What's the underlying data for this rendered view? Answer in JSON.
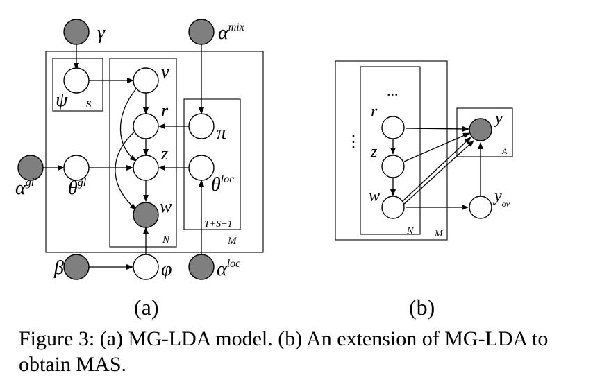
{
  "panel_a": {
    "label": "(a)",
    "nodes": {
      "gamma": "γ",
      "alpha_mix": "α",
      "alpha_mix_sup": "mix",
      "psi": "ψ",
      "v": "v",
      "r": "r",
      "pi": "π",
      "alpha_gl": "α",
      "alpha_gl_sup": "gl",
      "theta_gl": "θ",
      "theta_gl_sup": "gl",
      "z": "z",
      "theta_loc": "θ",
      "theta_loc_sup": "loc",
      "w": "w",
      "beta": "β",
      "phi": "φ",
      "alpha_loc": "α",
      "alpha_loc_sup": "loc"
    },
    "plates": {
      "s": "S",
      "n": "N",
      "t": "T+S−1",
      "m": "M"
    }
  },
  "panel_b": {
    "label": "(b)",
    "nodes": {
      "dots_top": "...",
      "dots_left": "⋮",
      "r": "r",
      "z": "z",
      "w": "w",
      "y": "y",
      "y_ov": "y",
      "y_ov_sub": "ov"
    },
    "plates": {
      "n": "N",
      "m": "M",
      "a": "A"
    }
  },
  "caption": "Figure 3: (a) MG-LDA model. (b) An extension of MG-LDA to obtain MAS.",
  "colors": {
    "observed_fill": "#7f7f7f",
    "latent_fill": "#ffffff",
    "line": "#000000"
  }
}
